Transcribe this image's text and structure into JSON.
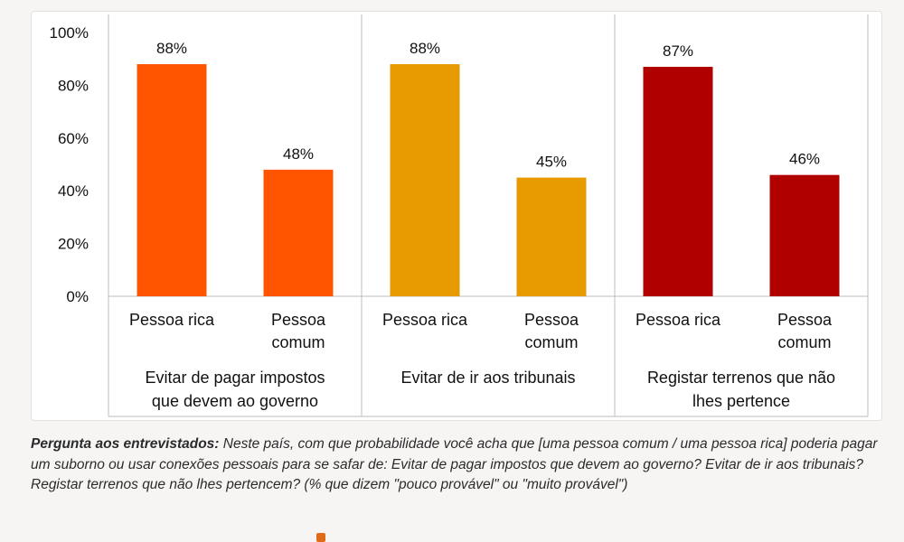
{
  "chart_data": {
    "type": "bar",
    "ylim": [
      0,
      100
    ],
    "y_ticks": [
      "0%",
      "20%",
      "40%",
      "60%",
      "80%",
      "100%"
    ],
    "value_suffix": "%",
    "grid": false,
    "groups": [
      {
        "label_lines": [
          "Evitar de  pagar impostos",
          "que devem ao governo"
        ],
        "color": "#ff5400",
        "bars": [
          {
            "category_lines": [
              "Pessoa rica"
            ],
            "value": 88
          },
          {
            "category_lines": [
              "Pessoa",
              "comum"
            ],
            "value": 48
          }
        ]
      },
      {
        "label_lines": [
          "Evitar de ir aos tribunais"
        ],
        "color": "#e69a00",
        "bars": [
          {
            "category_lines": [
              "Pessoa rica"
            ],
            "value": 88
          },
          {
            "category_lines": [
              "Pessoa",
              "comum"
            ],
            "value": 45
          }
        ]
      },
      {
        "label_lines": [
          "Registar terrenos que não",
          "lhes pertence"
        ],
        "color": "#b00000",
        "bars": [
          {
            "category_lines": [
              "Pessoa rica"
            ],
            "value": 87
          },
          {
            "category_lines": [
              "Pessoa",
              "comum"
            ],
            "value": 46
          }
        ]
      }
    ]
  },
  "caption": {
    "lead": "Pergunta aos entrevistados:",
    "text": " Neste país, com que probabilidade você acha que [uma pessoa comum / uma pessoa rica] poderia pagar um suborno ou usar conexões pessoais para se safar de: Evitar de pagar impostos que devem ao governo? Evitar de ir aos tribunais? Registar terrenos que não lhes pertencem? (% que dizem \"pouco provável\" ou \"muito provável\")"
  }
}
